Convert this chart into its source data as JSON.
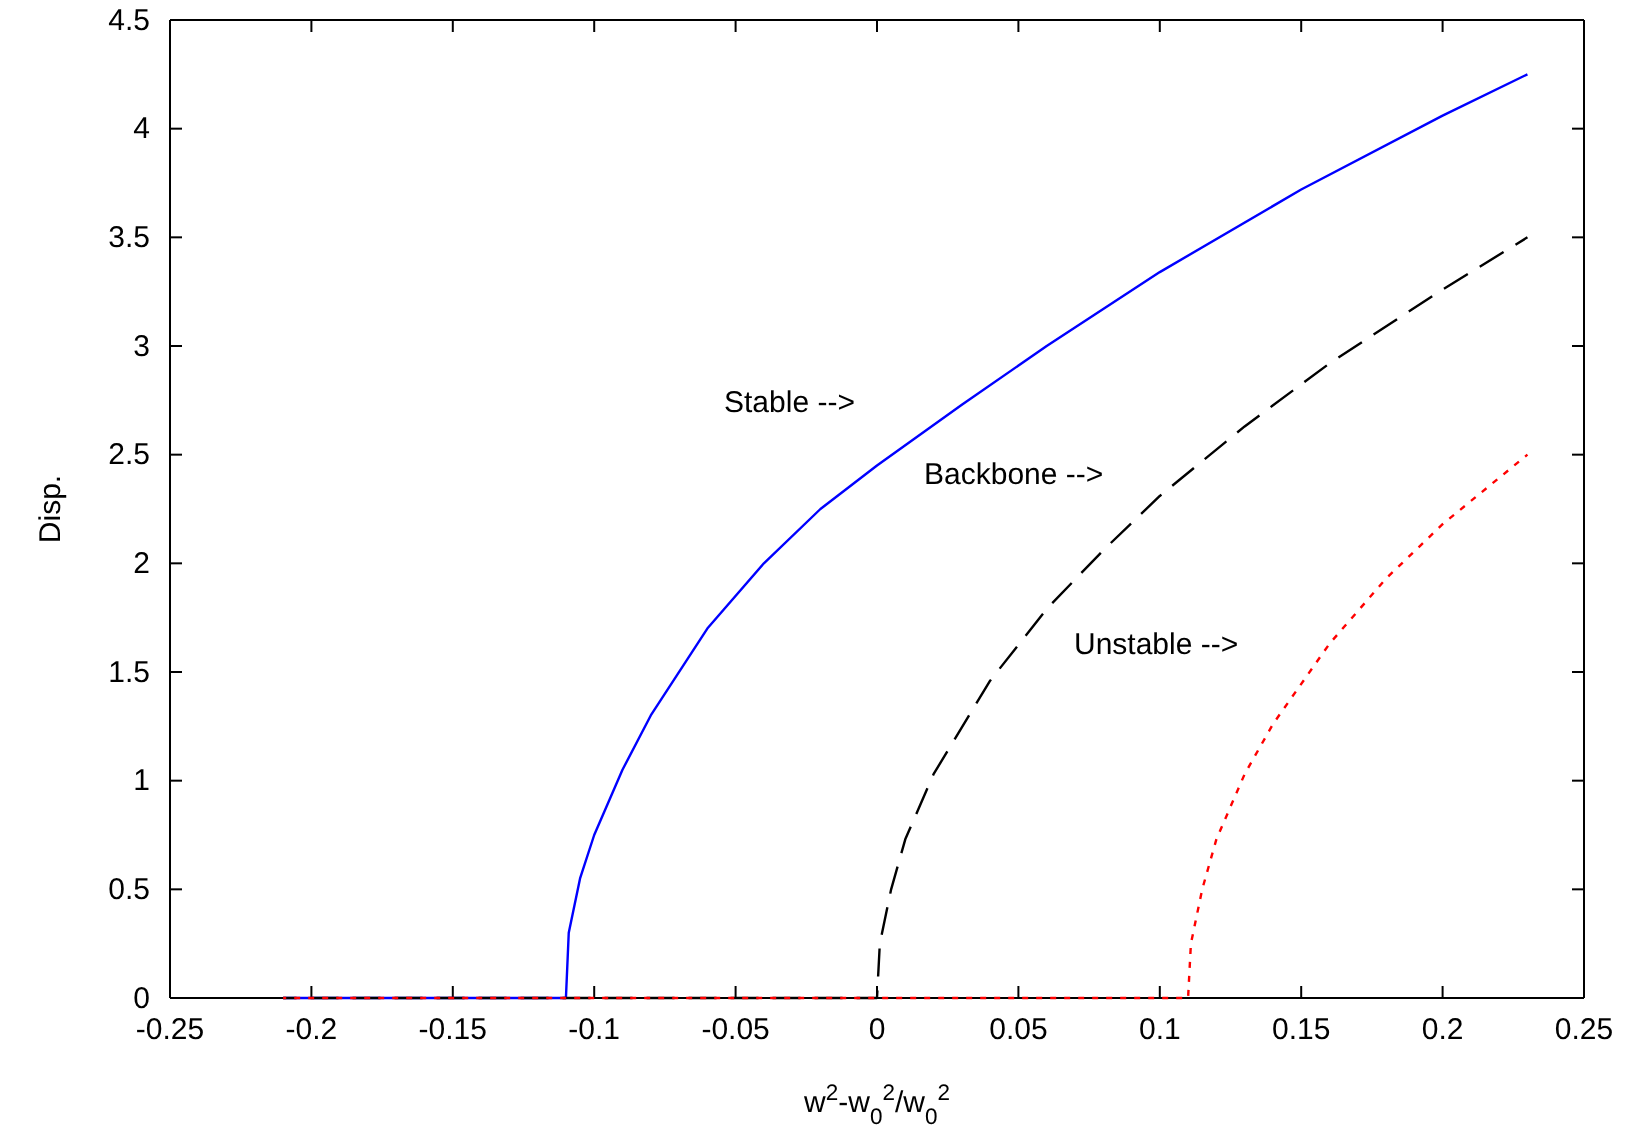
{
  "chart_data": {
    "type": "line",
    "xlabel": "w$^{2}$-w$_{0}$$^{2}$/w$_{0}$$^{2}$",
    "ylabel": "Disp.",
    "xlim": [
      -0.25,
      0.25
    ],
    "xticks": [
      -0.25,
      -0.2,
      -0.15,
      -0.1,
      -0.05,
      0,
      0.05,
      0.1,
      0.15,
      0.2,
      0.25
    ],
    "ylim": [
      0,
      4.5
    ],
    "yticks": [
      0,
      0.5,
      1,
      1.5,
      2,
      2.5,
      3,
      3.5,
      4,
      4.5
    ],
    "grid": false,
    "series": [
      {
        "color": "#0000ff",
        "line_style": "solid",
        "x": [
          -0.21,
          -0.11,
          -0.109,
          -0.105,
          -0.1,
          -0.09,
          -0.08,
          -0.06,
          -0.04,
          -0.02,
          0,
          0.03,
          0.06,
          0.1,
          0.15,
          0.2,
          0.23
        ],
        "values": [
          0,
          0,
          0.3,
          0.55,
          0.75,
          1.05,
          1.3,
          1.7,
          2.0,
          2.25,
          2.45,
          2.73,
          3.0,
          3.34,
          3.72,
          4.06,
          4.25
        ]
      },
      {
        "color": "#000000",
        "line_style": "dashed",
        "x": [
          -0.21,
          0,
          0.001,
          0.005,
          0.01,
          0.02,
          0.04,
          0.06,
          0.08,
          0.1,
          0.13,
          0.16,
          0.2,
          0.23
        ],
        "values": [
          0,
          0,
          0.25,
          0.5,
          0.73,
          1.03,
          1.46,
          1.79,
          2.06,
          2.31,
          2.63,
          2.92,
          3.26,
          3.5
        ]
      },
      {
        "color": "#ff0000",
        "line_style": "dotted",
        "x": [
          -0.21,
          0.11,
          0.111,
          0.115,
          0.12,
          0.13,
          0.14,
          0.16,
          0.18,
          0.2,
          0.23
        ],
        "values": [
          0,
          0,
          0.25,
          0.5,
          0.73,
          1.03,
          1.26,
          1.63,
          1.93,
          2.18,
          2.5
        ]
      }
    ],
    "annotations": [
      "Stable -->",
      "Backbone -->",
      "Unstable -->"
    ]
  }
}
